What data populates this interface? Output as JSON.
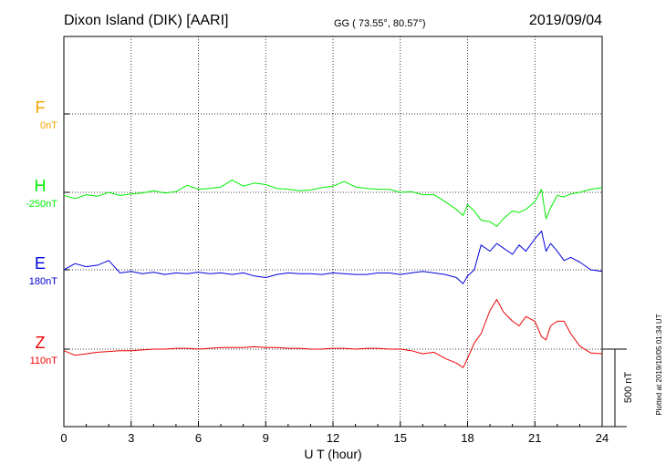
{
  "header": {
    "station": "Dixon Island (DIK)  [AARI]",
    "coords": "GG ( 73.55°,  80.57°)",
    "date": "2019/09/04"
  },
  "footer_note": "Plotted at 2019/10/05 01:34 UT",
  "scale_bar_label": "500 nT",
  "chart_data": {
    "type": "line",
    "title": "Dixon Island (DIK)  [AARI]",
    "xlabel": "U T (hour)",
    "ylabel": "",
    "xlim": [
      0,
      24
    ],
    "xticks": [
      0,
      3,
      6,
      9,
      12,
      15,
      18,
      21,
      24
    ],
    "grid": true,
    "y_scale_nT_per_bar": 500,
    "series": [
      {
        "name": "F",
        "baseline_label": "0nT",
        "color": "#f5a500",
        "x": [],
        "values": []
      },
      {
        "name": "H",
        "baseline_label": "-250nT",
        "color": "#00ee00",
        "x": [
          0,
          0.5,
          1,
          1.5,
          2,
          2.5,
          3,
          3.5,
          4,
          4.5,
          5,
          5.5,
          6,
          6.5,
          7,
          7.5,
          8,
          8.5,
          9,
          9.5,
          10,
          10.5,
          11,
          11.5,
          12,
          12.5,
          13,
          13.5,
          14,
          14.5,
          15,
          15.5,
          16,
          16.5,
          17,
          17.5,
          17.8,
          18,
          18.3,
          18.6,
          19,
          19.3,
          19.6,
          20,
          20.3,
          20.6,
          21,
          21.3,
          21.5,
          21.7,
          22,
          22.3,
          22.6,
          23,
          23.5,
          24
        ],
        "values": [
          -20,
          -40,
          -15,
          -25,
          0,
          -20,
          -10,
          -5,
          10,
          -5,
          5,
          45,
          20,
          25,
          35,
          80,
          40,
          60,
          50,
          25,
          20,
          10,
          15,
          30,
          40,
          70,
          35,
          25,
          20,
          20,
          0,
          5,
          -15,
          -15,
          -60,
          -110,
          -150,
          -80,
          -120,
          -180,
          -190,
          -220,
          -170,
          -120,
          -130,
          -110,
          -60,
          20,
          -170,
          -100,
          -20,
          -30,
          -10,
          0,
          20,
          30
        ]
      },
      {
        "name": "E",
        "baseline_label": "180nT",
        "color": "#0000dd",
        "x": [
          0,
          0.5,
          1,
          1.5,
          2,
          2.5,
          3,
          3.5,
          4,
          4.5,
          5,
          5.5,
          6,
          6.5,
          7,
          7.5,
          8,
          8.5,
          9,
          9.5,
          10,
          10.5,
          11,
          11.5,
          12,
          12.5,
          13,
          13.5,
          14,
          14.5,
          15,
          15.5,
          16,
          16.5,
          17,
          17.5,
          17.8,
          18,
          18.3,
          18.6,
          19,
          19.3,
          19.6,
          20,
          20.3,
          20.6,
          21,
          21.3,
          21.5,
          21.7,
          22,
          22.3,
          22.6,
          23,
          23.5,
          24
        ],
        "values": [
          0,
          40,
          20,
          30,
          60,
          -20,
          -10,
          -25,
          -15,
          -30,
          -20,
          -25,
          -15,
          -25,
          -20,
          -30,
          -20,
          -40,
          -50,
          -30,
          -20,
          -25,
          -25,
          -30,
          -20,
          -25,
          -30,
          -30,
          -20,
          -20,
          -30,
          -20,
          -10,
          -20,
          -30,
          -50,
          -90,
          -40,
          0,
          160,
          120,
          170,
          140,
          100,
          160,
          120,
          200,
          250,
          120,
          170,
          120,
          60,
          80,
          50,
          0,
          -10
        ]
      },
      {
        "name": "Z",
        "baseline_label": "110nT",
        "color": "#ee0000",
        "x": [
          0,
          0.5,
          1,
          1.5,
          2,
          2.5,
          3,
          3.5,
          4,
          4.5,
          5,
          5.5,
          6,
          6.5,
          7,
          7.5,
          8,
          8.5,
          9,
          9.5,
          10,
          10.5,
          11,
          11.5,
          12,
          12.5,
          13,
          13.5,
          14,
          14.5,
          15,
          15.5,
          16,
          16.5,
          17,
          17.5,
          17.8,
          18,
          18.3,
          18.6,
          19,
          19.3,
          19.6,
          20,
          20.3,
          20.6,
          21,
          21.3,
          21.5,
          21.7,
          22,
          22.3,
          22.6,
          23,
          23.5,
          24
        ],
        "values": [
          -10,
          -40,
          -30,
          -20,
          -15,
          -10,
          -10,
          -5,
          0,
          0,
          5,
          5,
          0,
          5,
          10,
          10,
          10,
          15,
          10,
          10,
          5,
          5,
          0,
          0,
          5,
          5,
          0,
          5,
          5,
          0,
          0,
          -10,
          -30,
          -20,
          -60,
          -90,
          -120,
          -60,
          40,
          100,
          250,
          320,
          240,
          180,
          150,
          210,
          180,
          80,
          60,
          150,
          180,
          180,
          100,
          20,
          -25,
          -30
        ]
      }
    ]
  }
}
